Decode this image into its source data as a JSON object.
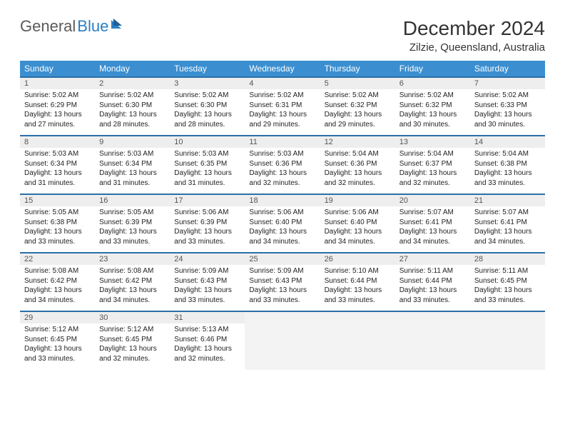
{
  "logo": {
    "text1": "General",
    "text2": "Blue"
  },
  "title": "December 2024",
  "location": "Zilzie, Queensland, Australia",
  "colors": {
    "header_bg": "#3b8fd0",
    "header_text": "#ffffff",
    "row_border": "#2b6fa8",
    "daynum_bg": "#eeeeee",
    "empty_bg": "#f3f3f3",
    "title_color": "#333333",
    "logo_gray": "#5a5a5a",
    "logo_blue": "#2b7fc4"
  },
  "day_headers": [
    "Sunday",
    "Monday",
    "Tuesday",
    "Wednesday",
    "Thursday",
    "Friday",
    "Saturday"
  ],
  "weeks": [
    [
      {
        "n": "1",
        "sr": "5:02 AM",
        "ss": "6:29 PM",
        "dl": "13 hours and 27 minutes."
      },
      {
        "n": "2",
        "sr": "5:02 AM",
        "ss": "6:30 PM",
        "dl": "13 hours and 28 minutes."
      },
      {
        "n": "3",
        "sr": "5:02 AM",
        "ss": "6:30 PM",
        "dl": "13 hours and 28 minutes."
      },
      {
        "n": "4",
        "sr": "5:02 AM",
        "ss": "6:31 PM",
        "dl": "13 hours and 29 minutes."
      },
      {
        "n": "5",
        "sr": "5:02 AM",
        "ss": "6:32 PM",
        "dl": "13 hours and 29 minutes."
      },
      {
        "n": "6",
        "sr": "5:02 AM",
        "ss": "6:32 PM",
        "dl": "13 hours and 30 minutes."
      },
      {
        "n": "7",
        "sr": "5:02 AM",
        "ss": "6:33 PM",
        "dl": "13 hours and 30 minutes."
      }
    ],
    [
      {
        "n": "8",
        "sr": "5:03 AM",
        "ss": "6:34 PM",
        "dl": "13 hours and 31 minutes."
      },
      {
        "n": "9",
        "sr": "5:03 AM",
        "ss": "6:34 PM",
        "dl": "13 hours and 31 minutes."
      },
      {
        "n": "10",
        "sr": "5:03 AM",
        "ss": "6:35 PM",
        "dl": "13 hours and 31 minutes."
      },
      {
        "n": "11",
        "sr": "5:03 AM",
        "ss": "6:36 PM",
        "dl": "13 hours and 32 minutes."
      },
      {
        "n": "12",
        "sr": "5:04 AM",
        "ss": "6:36 PM",
        "dl": "13 hours and 32 minutes."
      },
      {
        "n": "13",
        "sr": "5:04 AM",
        "ss": "6:37 PM",
        "dl": "13 hours and 32 minutes."
      },
      {
        "n": "14",
        "sr": "5:04 AM",
        "ss": "6:38 PM",
        "dl": "13 hours and 33 minutes."
      }
    ],
    [
      {
        "n": "15",
        "sr": "5:05 AM",
        "ss": "6:38 PM",
        "dl": "13 hours and 33 minutes."
      },
      {
        "n": "16",
        "sr": "5:05 AM",
        "ss": "6:39 PM",
        "dl": "13 hours and 33 minutes."
      },
      {
        "n": "17",
        "sr": "5:06 AM",
        "ss": "6:39 PM",
        "dl": "13 hours and 33 minutes."
      },
      {
        "n": "18",
        "sr": "5:06 AM",
        "ss": "6:40 PM",
        "dl": "13 hours and 34 minutes."
      },
      {
        "n": "19",
        "sr": "5:06 AM",
        "ss": "6:40 PM",
        "dl": "13 hours and 34 minutes."
      },
      {
        "n": "20",
        "sr": "5:07 AM",
        "ss": "6:41 PM",
        "dl": "13 hours and 34 minutes."
      },
      {
        "n": "21",
        "sr": "5:07 AM",
        "ss": "6:41 PM",
        "dl": "13 hours and 34 minutes."
      }
    ],
    [
      {
        "n": "22",
        "sr": "5:08 AM",
        "ss": "6:42 PM",
        "dl": "13 hours and 34 minutes."
      },
      {
        "n": "23",
        "sr": "5:08 AM",
        "ss": "6:42 PM",
        "dl": "13 hours and 34 minutes."
      },
      {
        "n": "24",
        "sr": "5:09 AM",
        "ss": "6:43 PM",
        "dl": "13 hours and 33 minutes."
      },
      {
        "n": "25",
        "sr": "5:09 AM",
        "ss": "6:43 PM",
        "dl": "13 hours and 33 minutes."
      },
      {
        "n": "26",
        "sr": "5:10 AM",
        "ss": "6:44 PM",
        "dl": "13 hours and 33 minutes."
      },
      {
        "n": "27",
        "sr": "5:11 AM",
        "ss": "6:44 PM",
        "dl": "13 hours and 33 minutes."
      },
      {
        "n": "28",
        "sr": "5:11 AM",
        "ss": "6:45 PM",
        "dl": "13 hours and 33 minutes."
      }
    ],
    [
      {
        "n": "29",
        "sr": "5:12 AM",
        "ss": "6:45 PM",
        "dl": "13 hours and 33 minutes."
      },
      {
        "n": "30",
        "sr": "5:12 AM",
        "ss": "6:45 PM",
        "dl": "13 hours and 32 minutes."
      },
      {
        "n": "31",
        "sr": "5:13 AM",
        "ss": "6:46 PM",
        "dl": "13 hours and 32 minutes."
      },
      null,
      null,
      null,
      null
    ]
  ]
}
